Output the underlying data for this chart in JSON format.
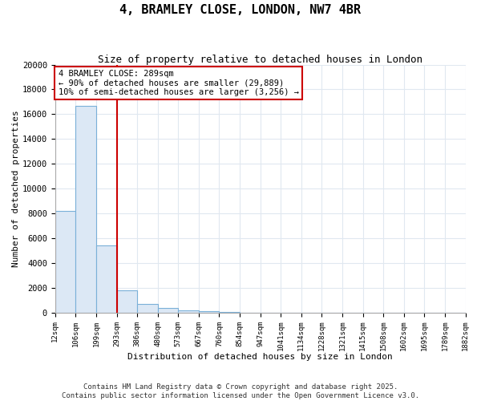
{
  "title": "4, BRAMLEY CLOSE, LONDON, NW7 4BR",
  "subtitle": "Size of property relative to detached houses in London",
  "xlabel": "Distribution of detached houses by size in London",
  "ylabel": "Number of detached properties",
  "bar_values": [
    8200,
    16700,
    5400,
    1800,
    700,
    350,
    200,
    100,
    50,
    20,
    10,
    5,
    3,
    2,
    1,
    1,
    0,
    0,
    0,
    0
  ],
  "bin_labels": [
    "12sqm",
    "106sqm",
    "199sqm",
    "293sqm",
    "386sqm",
    "480sqm",
    "573sqm",
    "667sqm",
    "760sqm",
    "854sqm",
    "947sqm",
    "1041sqm",
    "1134sqm",
    "1228sqm",
    "1321sqm",
    "1415sqm",
    "1508sqm",
    "1602sqm",
    "1695sqm",
    "1789sqm",
    "1882sqm"
  ],
  "bar_color": "#dce8f5",
  "bar_edge_color": "#7ab0d8",
  "property_line_color": "#cc0000",
  "property_line_bin": 2,
  "annotation_text": "4 BRAMLEY CLOSE: 289sqm\n← 90% of detached houses are smaller (29,889)\n10% of semi-detached houses are larger (3,256) →",
  "annotation_box_color": "#cc0000",
  "annotation_box_bg": "#ffffff",
  "ylim": [
    0,
    20000
  ],
  "yticks": [
    0,
    2000,
    4000,
    6000,
    8000,
    10000,
    12000,
    14000,
    16000,
    18000,
    20000
  ],
  "footer": "Contains HM Land Registry data © Crown copyright and database right 2025.\nContains public sector information licensed under the Open Government Licence v3.0.",
  "background_color": "#ffffff",
  "grid_color": "#e0e8f0"
}
